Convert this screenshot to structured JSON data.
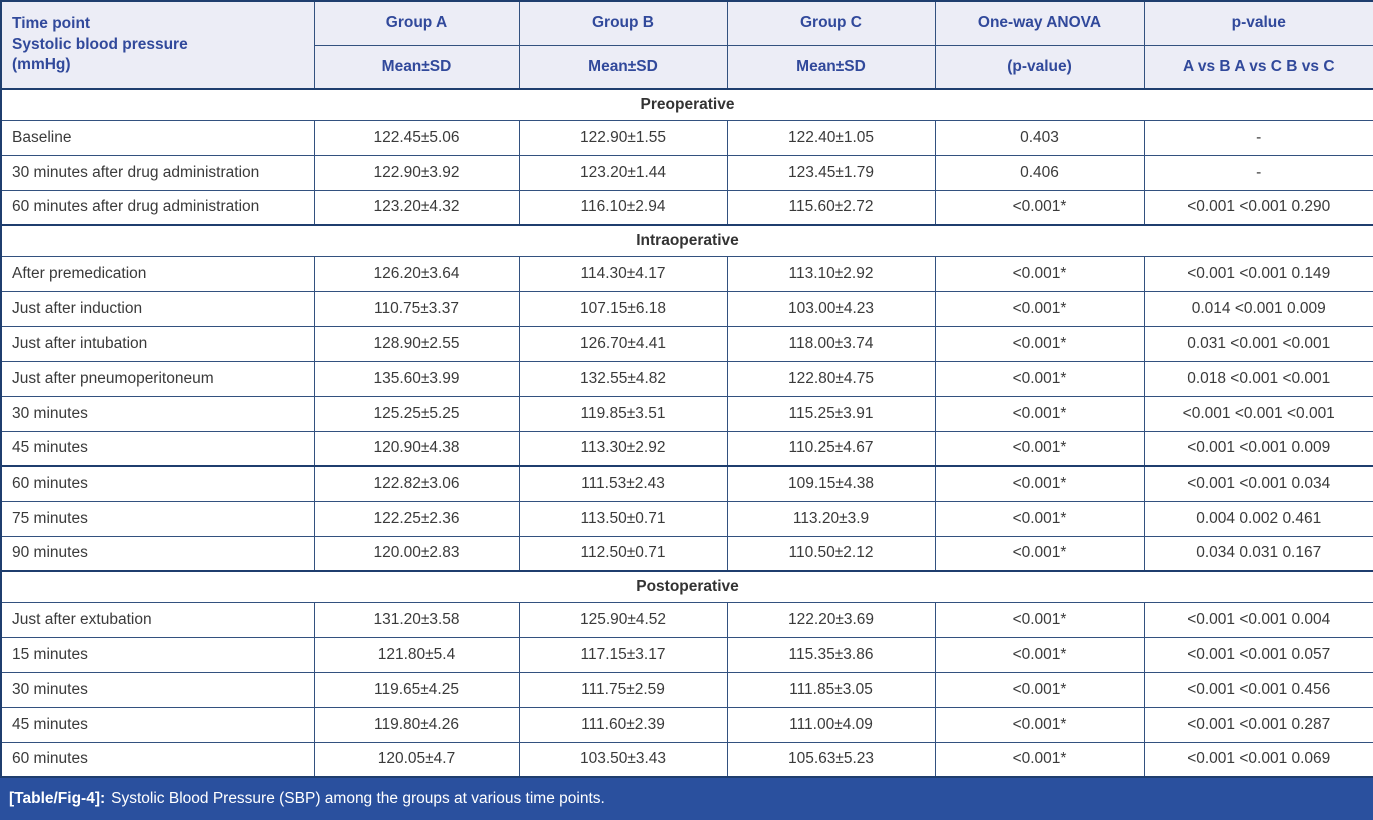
{
  "table": {
    "corner_header_lines": [
      "Time point",
      "Systolic blood pressure",
      "(mmHg)"
    ],
    "columns": [
      {
        "top": "Group A",
        "bottom": "Mean±SD"
      },
      {
        "top": "Group B",
        "bottom": "Mean±SD"
      },
      {
        "top": "Group C",
        "bottom": "Mean±SD"
      },
      {
        "top": "One-way ANOVA",
        "bottom": "(p-value)"
      },
      {
        "top": "p-value",
        "bottom": "A vs B A vs C B vs C"
      }
    ],
    "sections": [
      {
        "title": "Preoperative",
        "rows": [
          {
            "time": "Baseline",
            "group_a": "122.45±5.06",
            "group_b": "122.90±1.55",
            "group_c": "122.40±1.05",
            "anova": "0.403",
            "pairwise": "-"
          },
          {
            "time": "30 minutes after drug administration",
            "group_a": "122.90±3.92",
            "group_b": "123.20±1.44",
            "group_c": "123.45±1.79",
            "anova": "0.406",
            "pairwise": "-"
          },
          {
            "time": "60 minutes after drug administration",
            "group_a": "123.20±4.32",
            "group_b": "116.10±2.94",
            "group_c": "115.60±2.72",
            "anova": "<0.001*",
            "pairwise": "<0.001 <0.001 0.290"
          }
        ]
      },
      {
        "title": "Intraoperative",
        "rows": [
          {
            "time": "After premedication",
            "group_a": "126.20±3.64",
            "group_b": "114.30±4.17",
            "group_c": "113.10±2.92",
            "anova": "<0.001*",
            "pairwise": "<0.001 <0.001 0.149"
          },
          {
            "time": "Just after induction",
            "group_a": "110.75±3.37",
            "group_b": "107.15±6.18",
            "group_c": "103.00±4.23",
            "anova": "<0.001*",
            "pairwise": "0.014 <0.001 0.009"
          },
          {
            "time": "Just after intubation",
            "group_a": "128.90±2.55",
            "group_b": "126.70±4.41",
            "group_c": "118.00±3.74",
            "anova": "<0.001*",
            "pairwise": "0.031 <0.001 <0.001"
          },
          {
            "time": "Just after pneumoperitoneum",
            "group_a": "135.60±3.99",
            "group_b": "132.55±4.82",
            "group_c": "122.80±4.75",
            "anova": "<0.001*",
            "pairwise": "0.018 <0.001 <0.001"
          },
          {
            "time": "30 minutes",
            "group_a": "125.25±5.25",
            "group_b": "119.85±3.51",
            "group_c": "115.25±3.91",
            "anova": "<0.001*",
            "pairwise": "<0.001 <0.001 <0.001"
          },
          {
            "time": "45 minutes",
            "group_a": "120.90±4.38",
            "group_b": "113.30±2.92",
            "group_c": "110.25±4.67",
            "anova": "<0.001*",
            "pairwise": "<0.001 <0.001 0.009"
          },
          {
            "time": "60 minutes",
            "group_a": "122.82±3.06",
            "group_b": "111.53±2.43",
            "group_c": "109.15±4.38",
            "anova": "<0.001*",
            "pairwise": "<0.001 <0.001 0.034",
            "heavy_top": true
          },
          {
            "time": "75 minutes",
            "group_a": "122.25±2.36",
            "group_b": "113.50±0.71",
            "group_c": "113.20±3.9",
            "anova": "<0.001*",
            "pairwise": "0.004 0.002 0.461"
          },
          {
            "time": "90 minutes",
            "group_a": "120.00±2.83",
            "group_b": "112.50±0.71",
            "group_c": "110.50±2.12",
            "anova": "<0.001*",
            "pairwise": "0.034 0.031 0.167"
          }
        ]
      },
      {
        "title": "Postoperative",
        "rows": [
          {
            "time": "Just after extubation",
            "group_a": "131.20±3.58",
            "group_b": "125.90±4.52",
            "group_c": "122.20±3.69",
            "anova": "<0.001*",
            "pairwise": "<0.001 <0.001 0.004"
          },
          {
            "time": "15 minutes",
            "group_a": "121.80±5.4",
            "group_b": "117.15±3.17",
            "group_c": "115.35±3.86",
            "anova": "<0.001*",
            "pairwise": "<0.001 <0.001 0.057"
          },
          {
            "time": "30 minutes",
            "group_a": "119.65±4.25",
            "group_b": "111.75±2.59",
            "group_c": "111.85±3.05",
            "anova": "<0.001*",
            "pairwise": "<0.001 <0.001 0.456"
          },
          {
            "time": "45 minutes",
            "group_a": "119.80±4.26",
            "group_b": "111.60±2.39",
            "group_c": "111.00±4.09",
            "anova": "<0.001*",
            "pairwise": "<0.001 <0.001 0.287"
          },
          {
            "time": "60 minutes",
            "group_a": "120.05±4.7",
            "group_b": "103.50±3.43",
            "group_c": "105.63±5.23",
            "anova": "<0.001*",
            "pairwise": "<0.001 <0.001 0.069"
          }
        ]
      }
    ]
  },
  "caption": {
    "tag": "[Table/Fig-4]:",
    "text": "Systolic Blood Pressure (SBP) among the groups at various time points."
  },
  "colors": {
    "header_bg": "#ecedf6",
    "header_text": "#31499b",
    "border": "#33517f",
    "border_heavy": "#1f3e6e",
    "caption_bg": "#2a509e",
    "caption_text": "#ffffff",
    "body_text": "#3a3a3a"
  }
}
